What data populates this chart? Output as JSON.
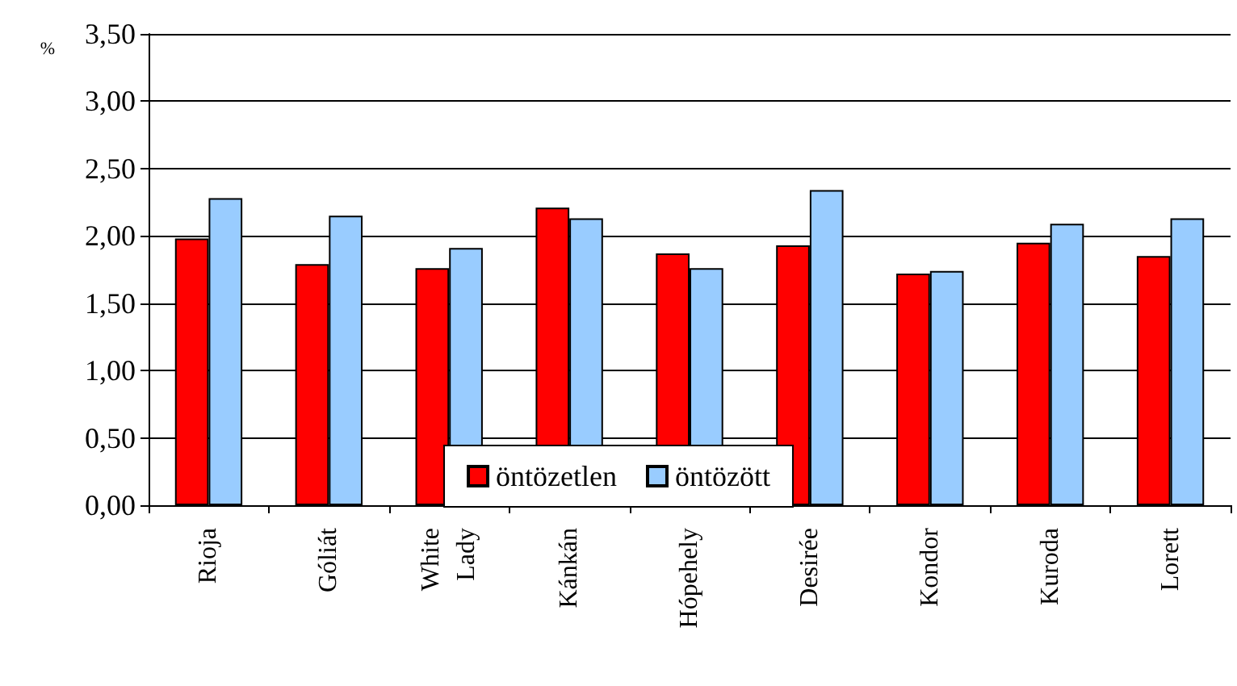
{
  "chart_data": {
    "type": "bar",
    "ylabel": "%",
    "categories": [
      "Rioja",
      "Góliát",
      "White Lady",
      "Kánkán",
      "Hópehely",
      "Desirée",
      "Kondor",
      "Kuroda",
      "Lorett"
    ],
    "series": [
      {
        "name": "öntözetlen",
        "color": "#ff0000",
        "values": [
          1.98,
          1.79,
          1.76,
          2.21,
          1.87,
          1.93,
          1.72,
          1.95,
          1.85
        ]
      },
      {
        "name": "öntözött",
        "color": "#99ccff",
        "values": [
          2.28,
          2.15,
          1.91,
          2.13,
          1.76,
          2.34,
          1.74,
          2.09,
          2.13
        ]
      }
    ],
    "ylim": [
      0,
      3.5
    ],
    "yticks": [
      {
        "value": 0,
        "label": "0,00"
      },
      {
        "value": 0.5,
        "label": "0,50"
      },
      {
        "value": 1,
        "label": "1,00"
      },
      {
        "value": 1.5,
        "label": "1,50"
      },
      {
        "value": 2,
        "label": "2,00"
      },
      {
        "value": 2.5,
        "label": "2,50"
      },
      {
        "value": 3,
        "label": "3,00"
      },
      {
        "value": 3.5,
        "label": "3,50"
      }
    ],
    "grid": "y",
    "legend": "bottom"
  }
}
